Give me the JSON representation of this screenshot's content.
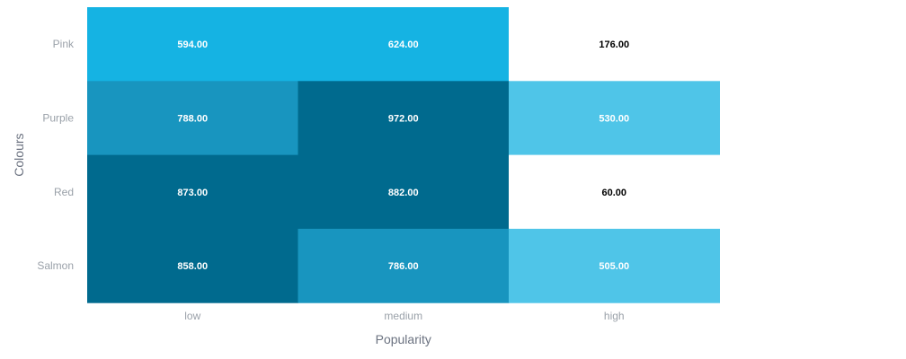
{
  "chart_data": {
    "type": "heatmap",
    "title": "",
    "xlabel": "Popularity",
    "ylabel": "Colours",
    "x_categories": [
      "low",
      "medium",
      "high"
    ],
    "y_categories": [
      "Pink",
      "Purple",
      "Red",
      "Salmon"
    ],
    "values": [
      [
        594,
        624,
        176
      ],
      [
        788,
        972,
        530
      ],
      [
        873,
        882,
        60
      ],
      [
        858,
        786,
        505
      ]
    ],
    "value_labels": [
      [
        "594.00",
        "624.00",
        "176.00"
      ],
      [
        "788.00",
        "972.00",
        "530.00"
      ],
      [
        "873.00",
        "882.00",
        "60.00"
      ],
      [
        "858.00",
        "786.00",
        "505.00"
      ]
    ],
    "color_bins": [
      {
        "min": 0,
        "max": 200,
        "color": "#ffffff"
      },
      {
        "min": 200,
        "max": 580,
        "color": "#4fc5e8"
      },
      {
        "min": 580,
        "max": 700,
        "color": "#15b3e3"
      },
      {
        "min": 700,
        "max": 800,
        "color": "#1895bf"
      },
      {
        "min": 800,
        "max": 1000,
        "color": "#006a8e"
      }
    ],
    "legend": "none",
    "grid": false
  }
}
